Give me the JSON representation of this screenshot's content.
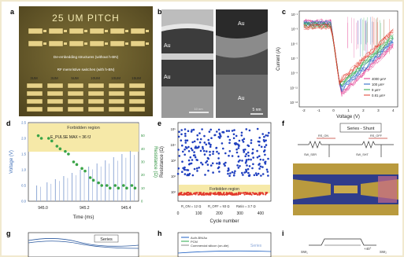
{
  "figure": {
    "panels": {
      "a": {
        "letter": "a",
        "pitch_text": "25 UM PITCH",
        "deembed_label": "De-embedding structures (without h-BN)",
        "switch_label": "RF memristive switches (with h-BN)",
        "size_labels": [
          "3UM",
          "3UM",
          "5UM",
          "10UM",
          "10UM",
          "15UM"
        ]
      },
      "b": {
        "letter": "b",
        "left_top": "Au",
        "left_bottom": "Au",
        "right_top": "Au",
        "right_bottom": "Au",
        "left_scale": "10 nm",
        "right_scale": "5 nm"
      },
      "c": {
        "letter": "c",
        "xlabel": "Voltage (V)",
        "ylabel": "Current (A)",
        "legend": [
          "4000 μm²",
          "100 μm²",
          "9 μm²",
          "0.81 μm²"
        ],
        "x_ticks": [
          "-2",
          "-1",
          "0",
          "1",
          "2",
          "3",
          "4"
        ],
        "y_ticks": [
          "10⁻¹",
          "10⁻³",
          "10⁻⁵",
          "10⁻⁷",
          "10⁻⁹",
          "10⁻¹¹",
          "10⁻¹³"
        ],
        "colors": [
          "#e0308a",
          "#1c5fc4",
          "#27a84a",
          "#e23b2c"
        ]
      },
      "d": {
        "letter": "d",
        "forbidden": "Forbidden region",
        "pulse_label": "E_PULSE MAX ≈ 36 fJ",
        "xlabel": "Time (ms)",
        "ylabel_left": "Voltage (V)",
        "ylabel_right": "Resistance (Ω)",
        "x_ticks": [
          "945.0",
          "945.2",
          "945.4"
        ],
        "y_left_ticks": [
          "0.0",
          "0.5",
          "1.0",
          "1.5",
          "2.0",
          "2.5"
        ],
        "y_right_ticks": [
          "0",
          "10",
          "20",
          "30",
          "40",
          "50"
        ]
      },
      "e": {
        "letter": "e",
        "forbidden": "Forbidden region",
        "ron_text": "R_ON = 12 Ω",
        "roff_text": "R_OFF = 93 Ω",
        "ratio_text": "Ratio = 3.7 Ω",
        "xlabel": "Cycle number",
        "ylabel": "Resistance (Ω)",
        "x_ticks": [
          "0",
          "100",
          "200",
          "300",
          "400"
        ],
        "y_ticks": [
          "10⁵",
          "10⁴",
          "10³",
          "10²",
          "10¹"
        ]
      },
      "f": {
        "letter": "f",
        "title": "Series - Shunt",
        "labels": [
          "RS_ON",
          "RS_OFF",
          "SW_SER",
          "SW_SHT"
        ]
      },
      "g": {
        "letter": "g",
        "tag": "Series"
      },
      "h": {
        "letter": "h",
        "legend": [
          "Au/h-BN/Au",
          "PCM",
          "Commercial silicon (on-die)"
        ],
        "tag": "Series"
      },
      "i": {
        "letter": "i",
        "labels": [
          "SW₁",
          "SW₂",
          "+40°"
        ]
      }
    },
    "chart_data": [
      {
        "panel": "d",
        "type": "bar",
        "forbidden_region_v": [
          1.6,
          2.5
        ],
        "x": [
          944.97,
          945.02,
          945.06,
          945.1,
          945.14,
          945.18,
          945.22,
          945.26,
          945.3,
          945.34,
          945.38,
          945.42
        ],
        "voltage_v": [
          0.5,
          0.6,
          0.7,
          0.8,
          0.9,
          1.0,
          1.1,
          1.2,
          1.3,
          1.4,
          1.5,
          1.6
        ],
        "resistance_ohm": [
          50,
          48,
          42,
          38,
          30,
          25,
          18,
          14,
          12,
          12,
          12,
          12
        ]
      },
      {
        "panel": "e",
        "type": "scatter",
        "xlim": [
          0,
          450
        ],
        "off_state_ohm_range": [
          100,
          100000
        ],
        "on_state_ohm": 12
      }
    ]
  }
}
